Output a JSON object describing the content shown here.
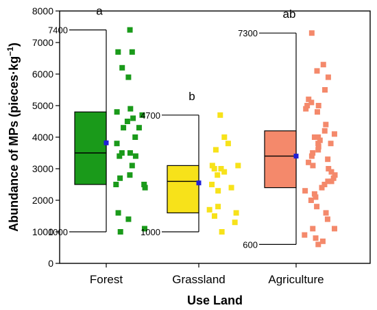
{
  "chart_data": {
    "type": "box",
    "xlabel": "Use Land",
    "ylabel": "Abundance of MPs (pieces·kg",
    "ylabel_sup": "−1",
    "ylabel_close": ")",
    "ylim": [
      0,
      8000
    ],
    "yticks": [
      0,
      1000,
      2000,
      3000,
      4000,
      5000,
      6000,
      7000,
      8000
    ],
    "grid": false,
    "categories": [
      "Forest",
      "Grassland",
      "Agriculture"
    ],
    "groups": [
      {
        "name": "Forest",
        "color": "#1a9a1a",
        "letter": "a",
        "q1": 2500,
        "median": 3500,
        "q3": 4800,
        "mean": 3820,
        "whisker_min": 1000,
        "whisker_max": 7400,
        "whisker_min_label": "1000",
        "whisker_max_label": "7400",
        "points": [
          7400,
          6700,
          6700,
          6200,
          5900,
          4900,
          4800,
          4700,
          4600,
          4500,
          4300,
          4300,
          4000,
          3800,
          3500,
          3500,
          3400,
          3400,
          3100,
          2800,
          2700,
          2500,
          2500,
          2400,
          1600,
          1400,
          1100,
          1000
        ]
      },
      {
        "name": "Grassland",
        "color": "#f7e21a",
        "letter": "b",
        "q1": 1600,
        "median": 2600,
        "q3": 3100,
        "mean": 2550,
        "whisker_min": 1000,
        "whisker_max": 4700,
        "whisker_min_label": "1000",
        "whisker_max_label": "4700",
        "points": [
          4700,
          4000,
          3800,
          3600,
          3100,
          3100,
          3000,
          3000,
          2900,
          2800,
          2500,
          2400,
          2300,
          1800,
          1700,
          1600,
          1500,
          1300,
          1000
        ]
      },
      {
        "name": "Agriculture",
        "color": "#f4896b",
        "letter": "ab",
        "q1": 2400,
        "median": 3400,
        "q3": 4200,
        "mean": 3400,
        "whisker_min": 600,
        "whisker_max": 7300,
        "whisker_min_label": "600",
        "whisker_max_label": "7300",
        "points": [
          7300,
          6300,
          6100,
          5900,
          5500,
          5200,
          5100,
          5000,
          5000,
          4900,
          4800,
          4400,
          4200,
          4100,
          4000,
          4000,
          3900,
          3800,
          3800,
          3700,
          3600,
          3500,
          3400,
          3300,
          3200,
          3100,
          3000,
          2900,
          2800,
          2700,
          2600,
          2600,
          2500,
          2400,
          2300,
          2200,
          2100,
          2000,
          1800,
          1600,
          1400,
          1100,
          1100,
          900,
          800,
          700,
          600
        ]
      }
    ]
  },
  "colors": {
    "mean_marker": "#1f1fd8"
  }
}
